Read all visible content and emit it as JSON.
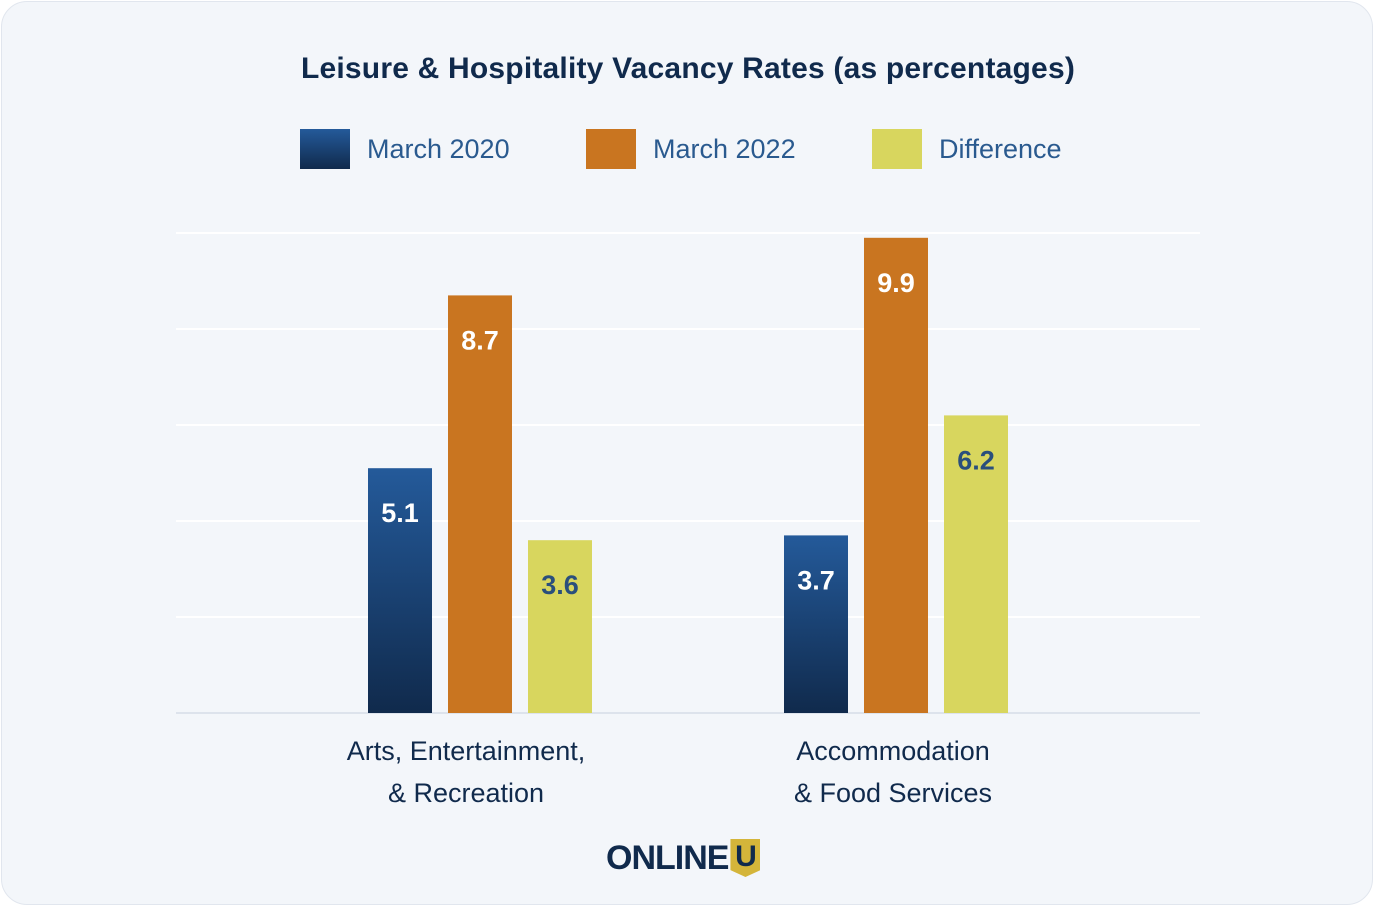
{
  "chart_data": {
    "type": "bar",
    "title": "Leisure & Hospitality Vacancy Rates (as percentages)",
    "categories": [
      [
        "Arts, Entertainment,",
        "& Recreation"
      ],
      [
        "Accommodation",
        "& Food Services"
      ]
    ],
    "series": [
      {
        "name": "March 2020",
        "values": [
          5.1,
          3.7
        ],
        "color": "#1d4a80",
        "label_color": "#ffffff"
      },
      {
        "name": "March 2022",
        "values": [
          8.7,
          9.9
        ],
        "color": "#c97520",
        "label_color": "#ffffff"
      },
      {
        "name": "Difference",
        "values": [
          3.6,
          6.2
        ],
        "color": "#d8d65e",
        "label_color": "#2a4f7c"
      }
    ],
    "ylim": [
      0,
      10
    ],
    "grid": true,
    "legend": "top",
    "xlabel": "",
    "ylabel": ""
  },
  "logo": {
    "text": "ONLINE",
    "mark": "U"
  }
}
